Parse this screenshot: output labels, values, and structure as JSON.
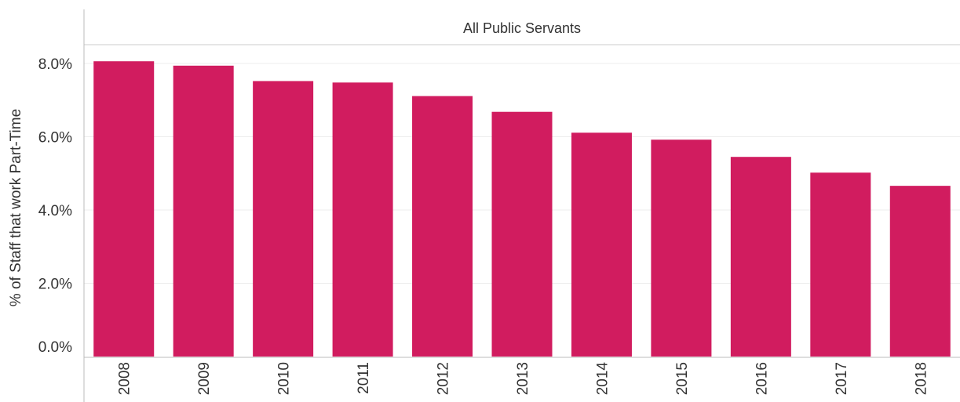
{
  "chart_data": {
    "type": "bar",
    "panel_title": "All Public Servants",
    "ylabel": "% of Staff that work Part-Time",
    "xlabel": "",
    "categories": [
      "2008",
      "2009",
      "2010",
      "2011",
      "2012",
      "2013",
      "2014",
      "2015",
      "2016",
      "2017",
      "2018"
    ],
    "values": [
      8.06,
      7.94,
      7.52,
      7.48,
      7.11,
      6.68,
      6.11,
      5.92,
      5.45,
      5.02,
      4.66
    ],
    "ylim": [
      0,
      9.3
    ],
    "yticks": [
      0,
      2,
      4,
      6,
      8
    ],
    "ytick_labels": [
      "0.0%",
      "2.0%",
      "4.0%",
      "6.0%",
      "8.0%"
    ],
    "grid": true,
    "legend": "none",
    "bar_color": "#D11C5F"
  }
}
